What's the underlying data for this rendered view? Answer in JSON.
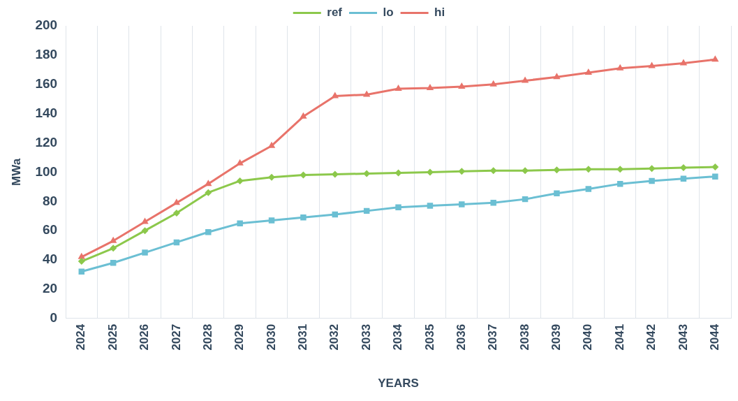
{
  "chart_data": {
    "type": "line",
    "xlabel": "YEARS",
    "ylabel": "MWa",
    "categories": [
      "2024",
      "2025",
      "2026",
      "2027",
      "2028",
      "2029",
      "2030",
      "2031",
      "2032",
      "2033",
      "2034",
      "2035",
      "2036",
      "2037",
      "2038",
      "2039",
      "2040",
      "2041",
      "2042",
      "2043",
      "2044"
    ],
    "series": [
      {
        "name": "ref",
        "color": "#8cc84b",
        "marker": "diamond",
        "values": [
          39,
          48,
          60,
          72,
          86,
          94,
          96.5,
          98,
          98.5,
          99,
          99.5,
          100,
          100.5,
          101,
          101,
          101.5,
          102,
          102,
          102.5,
          103,
          103.5
        ]
      },
      {
        "name": "lo",
        "color": "#6bbfd3",
        "marker": "square",
        "values": [
          32,
          38,
          45,
          52,
          59,
          65,
          67,
          69,
          71,
          73.5,
          76,
          77,
          78,
          79,
          81.5,
          85.5,
          88.5,
          92,
          94,
          95.5,
          97
        ]
      },
      {
        "name": "hi",
        "color": "#e8736a",
        "marker": "triangle",
        "values": [
          42,
          53,
          66,
          79,
          92,
          106,
          118,
          138,
          152,
          153,
          157,
          157.5,
          158.5,
          160,
          162.5,
          165,
          168,
          171,
          172.5,
          174.5,
          177
        ]
      }
    ],
    "ylim": [
      0,
      200
    ],
    "yticks": [
      0,
      20,
      40,
      60,
      80,
      100,
      120,
      140,
      160,
      180,
      200
    ],
    "grid": "x",
    "legend": "top",
    "line_style": "solid"
  }
}
